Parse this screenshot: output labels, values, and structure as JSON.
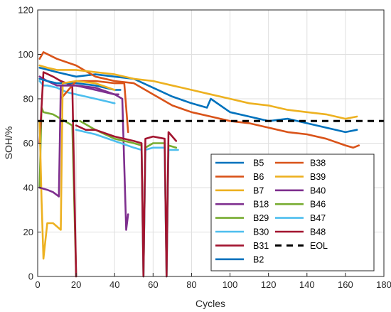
{
  "chart_data": {
    "type": "line",
    "xlabel": "Cycles",
    "ylabel": "SOH/%",
    "xlim": [
      0,
      180
    ],
    "ylim": [
      0,
      120
    ],
    "xticks": [
      "0",
      "20",
      "40",
      "60",
      "80",
      "100",
      "120",
      "140",
      "160",
      "180"
    ],
    "yticks": [
      "0",
      "20",
      "40",
      "60",
      "80",
      "100",
      "120"
    ],
    "grid": true,
    "legend_position": "lower-right",
    "eol": {
      "name": "EOL",
      "value": 70,
      "color": "#000000"
    },
    "series": [
      {
        "name": "B5",
        "color": "#0072BD",
        "x": [
          1,
          10,
          20,
          30,
          40,
          50,
          60,
          70,
          80,
          88,
          90,
          100,
          110,
          120,
          130,
          140,
          150,
          160,
          166
        ],
        "y": [
          94,
          92,
          90,
          91,
          90,
          89,
          85,
          81,
          78,
          76,
          80,
          74,
          72,
          70,
          71,
          69,
          67,
          65,
          66
        ]
      },
      {
        "name": "B6",
        "color": "#D95319",
        "x": [
          1,
          3,
          10,
          20,
          30,
          40,
          50,
          60,
          70,
          80,
          90,
          100,
          110,
          120,
          130,
          140,
          150,
          160,
          164,
          167
        ],
        "y": [
          98,
          101,
          98,
          95,
          90,
          88,
          87,
          82,
          77,
          74,
          72,
          70,
          69,
          67,
          65,
          64,
          62,
          59,
          58,
          59
        ]
      },
      {
        "name": "B7",
        "color": "#EDB120",
        "x": [
          1,
          5,
          10,
          20,
          30,
          40,
          50,
          60,
          70,
          80,
          90,
          100,
          110,
          120,
          130,
          140,
          150,
          160,
          166
        ],
        "y": [
          95,
          94,
          93,
          93,
          92,
          91,
          89,
          88,
          86,
          84,
          82,
          80,
          78,
          77,
          75,
          74,
          73,
          71,
          72
        ]
      },
      {
        "name": "B18",
        "color": "#7E2F8E",
        "x": [
          1,
          5,
          10,
          20,
          30,
          40,
          44,
          46,
          47
        ],
        "y": [
          90,
          88,
          86,
          86,
          84,
          82,
          80,
          21,
          28
        ]
      },
      {
        "name": "B29",
        "color": "#77AC30",
        "x": [
          1,
          2,
          3,
          8,
          12,
          18,
          20
        ],
        "y": [
          40,
          76,
          74,
          73,
          71,
          68,
          0
        ]
      },
      {
        "name": "B30",
        "color": "#4DBEEE",
        "x": [
          1,
          3,
          5,
          10,
          15,
          20,
          25,
          30,
          35,
          40
        ],
        "y": [
          88,
          86,
          86,
          85,
          83,
          82,
          81,
          80,
          79,
          78
        ]
      },
      {
        "name": "B31",
        "color": "#A2142F",
        "x": [
          1,
          3,
          8,
          12,
          18,
          20
        ],
        "y": [
          60,
          92,
          90,
          88,
          86,
          0
        ]
      },
      {
        "name": "B2",
        "color": "#0072BD",
        "x": [
          1,
          5,
          10,
          20,
          30,
          40,
          43
        ],
        "y": [
          89,
          88,
          87,
          87,
          86,
          84,
          84
        ]
      },
      {
        "name": "B38",
        "color": "#D95319",
        "x": [
          12,
          20,
          30,
          40,
          45,
          47
        ],
        "y": [
          80,
          88,
          88,
          87,
          87,
          65
        ]
      },
      {
        "name": "B39",
        "color": "#EDB120",
        "x": [
          1,
          2,
          3,
          5,
          8,
          12,
          13,
          20,
          30,
          40
        ],
        "y": [
          70,
          35,
          8,
          24,
          24,
          21,
          87,
          88,
          87,
          84
        ]
      },
      {
        "name": "B40",
        "color": "#7E2F8E",
        "x": [
          1,
          5,
          8,
          11,
          12,
          20,
          30,
          40,
          42
        ],
        "y": [
          40,
          39,
          38,
          36,
          86,
          86,
          85,
          82,
          82
        ]
      },
      {
        "name": "B46",
        "color": "#77AC30",
        "x": [
          22,
          30,
          40,
          50,
          54,
          55,
          56,
          60,
          66,
          67,
          68,
          72
        ],
        "y": [
          70,
          66,
          62,
          60,
          59,
          0,
          58,
          60,
          60,
          0,
          59,
          58
        ]
      },
      {
        "name": "B47",
        "color": "#4DBEEE",
        "x": [
          20,
          30,
          40,
          50,
          54,
          55,
          56,
          60,
          66,
          67,
          68,
          73
        ],
        "y": [
          66,
          64,
          61,
          58,
          57,
          0,
          57,
          58,
          58,
          0,
          57,
          57
        ]
      },
      {
        "name": "B48",
        "color": "#A2142F",
        "x": [
          20,
          25,
          30,
          40,
          50,
          54,
          55,
          56,
          60,
          66,
          67,
          68,
          72
        ],
        "y": [
          68,
          66,
          66,
          63,
          61,
          60,
          0,
          62,
          63,
          62,
          0,
          65,
          61
        ]
      }
    ],
    "legend": {
      "left_column": [
        "B5",
        "B6",
        "B7",
        "B18",
        "B29",
        "B30",
        "B31",
        "B2"
      ],
      "right_column": [
        "B38",
        "B39",
        "B40",
        "B46",
        "B47",
        "B48",
        "EOL"
      ]
    }
  }
}
